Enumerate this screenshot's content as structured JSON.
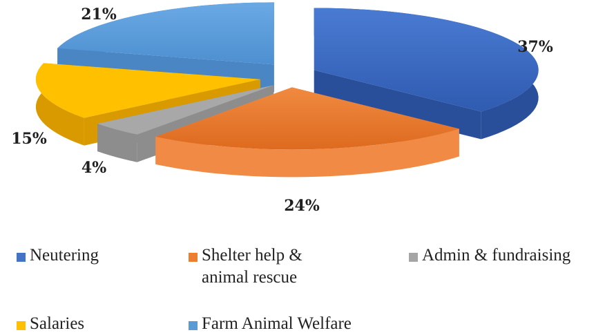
{
  "chart_data": {
    "type": "pie",
    "title": "",
    "exploded": true,
    "three_d": true,
    "legend_position": "bottom",
    "slices": [
      {
        "name": "Neutering",
        "value": 37,
        "label": "37%",
        "color": "#4472c4"
      },
      {
        "name": "Shelter help & animal rescue",
        "value": 24,
        "label": "24%",
        "color": "#ed7d31"
      },
      {
        "name": "Admin & fundraising",
        "value": 4,
        "label": "4%",
        "color": "#a5a5a5"
      },
      {
        "name": "Salaries",
        "value": 15,
        "label": "15%",
        "color": "#ffc000"
      },
      {
        "name": "Farm Animal Welfare",
        "value": 21,
        "label": "21%",
        "color": "#5b9bd5"
      }
    ]
  },
  "legend": {
    "items": [
      {
        "label_lines": [
          "Neutering"
        ],
        "color": "#4472c4"
      },
      {
        "label_lines": [
          "Shelter help &",
          "animal rescue"
        ],
        "color": "#ed7d31"
      },
      {
        "label_lines": [
          "Admin & fundraising"
        ],
        "color": "#a5a5a5"
      },
      {
        "label_lines": [
          "Salaries"
        ],
        "color": "#ffc000"
      },
      {
        "label_lines": [
          "Farm Animal Welfare"
        ],
        "color": "#5b9bd5"
      }
    ]
  }
}
